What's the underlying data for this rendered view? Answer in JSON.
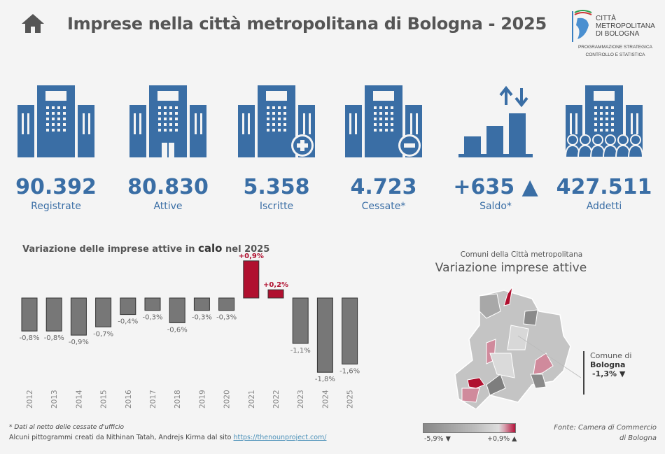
{
  "header": {
    "title": "Imprese nella città metropolitana di Bologna - 2025",
    "home_icon": "home-icon"
  },
  "logo": {
    "line1": "CITTÀ",
    "line2": "METROPOLITANA",
    "line3": "DI BOLOGNA",
    "sub1": "PROGRAMMAZIONE STRATEGICA",
    "sub2": "CONTROLLO E STATISTICA"
  },
  "colors": {
    "kpi_blue": "#3a6ea5",
    "negative_bar": "#777777",
    "positive_bar": "#b0102f"
  },
  "kpis": [
    {
      "value": "90.392",
      "label": "Registrate",
      "icon": "buildings-icon"
    },
    {
      "value": "80.830",
      "label": "Attive",
      "icon": "buildings-door-icon"
    },
    {
      "value": "5.358",
      "label": "Iscritte",
      "icon": "buildings-plus-icon"
    },
    {
      "value": "4.723",
      "label": "Cessate*",
      "icon": "buildings-minus-icon"
    },
    {
      "value": "+635 ▲",
      "label": "Saldo*",
      "icon": "bar-arrows-icon"
    },
    {
      "value": "427.511",
      "label": "Addetti",
      "icon": "buildings-people-icon"
    }
  ],
  "chart_data": {
    "type": "bar",
    "title_pre": "Variazione delle imprese attive in ",
    "title_bold": "calo",
    "title_post": " nel 2025",
    "categories": [
      "2012",
      "2013",
      "2014",
      "2015",
      "2016",
      "2017",
      "2018",
      "2019",
      "2020",
      "2021",
      "2022",
      "2023",
      "2024",
      "2025"
    ],
    "values": [
      -0.8,
      -0.8,
      -0.9,
      -0.7,
      -0.4,
      -0.3,
      -0.6,
      -0.3,
      -0.3,
      0.9,
      0.2,
      -1.1,
      -1.8,
      -1.6
    ],
    "labels": [
      "-0,8%",
      "-0,8%",
      "-0,9%",
      "-0,7%",
      "-0,4%",
      "-0,3%",
      "-0,6%",
      "-0,3%",
      "-0,3%",
      "+0,9%",
      "+0,2%",
      "-1,1%",
      "-1,8%",
      "-1,6%"
    ],
    "xlabel": "",
    "ylabel": ""
  },
  "notes": {
    "note1": "* Dati al netto delle cessate d'ufficio",
    "note2": "Alcuni pittogrammi creati da Nithinan Tatah, Andrejs Kirma dal sito ",
    "link": "https://thenounproject.com/"
  },
  "map": {
    "subtitle": "Comuni della Città metropolitana",
    "title": "Variazione imprese attive",
    "callout_line1": "Comune di",
    "callout_name": "Bologna",
    "callout_value": "-1,3% ▼",
    "legend_min": "-5,9% ▼",
    "legend_max": "+0,9% ▲"
  },
  "source": {
    "line1": "Fonte: Camera di Commercio",
    "line2": "di Bologna"
  }
}
